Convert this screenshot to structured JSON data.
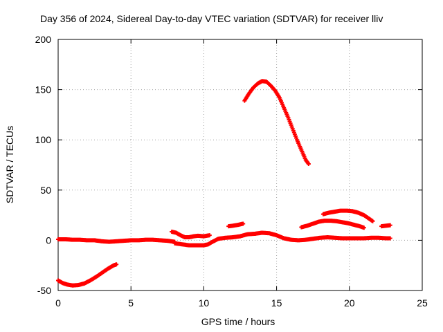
{
  "chart_data": {
    "type": "scatter",
    "title": "Day 356 of 2024, Sidereal Day-to-day VTEC variation (SDTVAR) for receiver lliv",
    "xlabel": "GPS time / hours",
    "ylabel": "SDTVAR / TECUs",
    "xlim": [
      0,
      25
    ],
    "ylim": [
      -50,
      200
    ],
    "xticks": [
      0,
      5,
      10,
      15,
      20,
      25
    ],
    "yticks": [
      -50,
      0,
      50,
      100,
      150,
      200
    ],
    "grid": true,
    "marker_color": "#ff0000",
    "series": [
      {
        "name": "seg-neg-dip",
        "points": [
          [
            0,
            -40
          ],
          [
            0.3,
            -42.5
          ],
          [
            0.6,
            -44
          ],
          [
            1.0,
            -45
          ],
          [
            1.4,
            -44.5
          ],
          [
            1.8,
            -43
          ],
          [
            2.2,
            -40
          ],
          [
            2.6,
            -36.5
          ],
          [
            3.0,
            -32.5
          ],
          [
            3.4,
            -28.5
          ],
          [
            3.8,
            -25
          ],
          [
            4.0,
            -24
          ]
        ]
      },
      {
        "name": "seg-baseline-a",
        "points": [
          [
            0,
            1
          ],
          [
            0.5,
            1
          ],
          [
            1.0,
            0.5
          ],
          [
            1.5,
            0.5
          ],
          [
            2.0,
            0
          ],
          [
            2.5,
            0
          ],
          [
            3.0,
            -1
          ],
          [
            3.5,
            -1.5
          ],
          [
            4.0,
            -1
          ],
          [
            4.5,
            -0.5
          ],
          [
            5.0,
            0
          ],
          [
            5.5,
            0
          ],
          [
            6.0,
            0.5
          ],
          [
            6.5,
            0.5
          ],
          [
            7.0,
            0
          ],
          [
            7.5,
            -0.5
          ],
          [
            8.0,
            -1.5
          ]
        ]
      },
      {
        "name": "seg-low-dip",
        "points": [
          [
            8.0,
            -3
          ],
          [
            8.5,
            -4
          ],
          [
            9.0,
            -5
          ],
          [
            9.5,
            -5
          ],
          [
            10.0,
            -5
          ],
          [
            10.3,
            -4
          ],
          [
            10.6,
            -1.5
          ],
          [
            11.0,
            1.5
          ],
          [
            11.5,
            2.5
          ],
          [
            12.0,
            3
          ],
          [
            12.5,
            4
          ],
          [
            13.0,
            6
          ],
          [
            13.5,
            6.5
          ],
          [
            14.0,
            7.5
          ],
          [
            14.5,
            7
          ],
          [
            15.0,
            5
          ],
          [
            15.5,
            2
          ],
          [
            16.0,
            0.5
          ],
          [
            16.5,
            0
          ],
          [
            17.0,
            0.5
          ],
          [
            17.5,
            1.5
          ],
          [
            18.0,
            2.5
          ],
          [
            18.5,
            3
          ],
          [
            19.0,
            2.5
          ],
          [
            19.5,
            2
          ],
          [
            20.0,
            2
          ],
          [
            20.5,
            2
          ],
          [
            21.0,
            2
          ],
          [
            21.5,
            2.5
          ],
          [
            22.0,
            2.5
          ],
          [
            22.5,
            2
          ],
          [
            22.8,
            2
          ]
        ]
      },
      {
        "name": "seg-bump-8",
        "points": [
          [
            7.8,
            8.5
          ],
          [
            8.1,
            7.5
          ],
          [
            8.4,
            5
          ],
          [
            8.7,
            3
          ],
          [
            9.0,
            3
          ],
          [
            9.3,
            4
          ],
          [
            9.6,
            4.5
          ],
          [
            10.0,
            4
          ],
          [
            10.4,
            5
          ]
        ]
      },
      {
        "name": "seg-bump-12",
        "points": [
          [
            11.7,
            14
          ],
          [
            12.0,
            14.5
          ],
          [
            12.4,
            15.5
          ],
          [
            12.7,
            16.5
          ]
        ]
      },
      {
        "name": "seg-peak-14",
        "points": [
          [
            12.8,
            139
          ],
          [
            13.1,
            146
          ],
          [
            13.4,
            152
          ],
          [
            13.7,
            156
          ],
          [
            14.0,
            158.5
          ],
          [
            14.3,
            158
          ],
          [
            14.6,
            154
          ],
          [
            14.9,
            149
          ],
          [
            15.2,
            142
          ],
          [
            15.5,
            132
          ],
          [
            15.8,
            122
          ],
          [
            16.1,
            111
          ],
          [
            16.4,
            100
          ],
          [
            16.7,
            90
          ],
          [
            17.0,
            80
          ],
          [
            17.2,
            76
          ]
        ]
      },
      {
        "name": "seg-arch-19",
        "points": [
          [
            16.7,
            13
          ],
          [
            17.1,
            14.5
          ],
          [
            17.5,
            16.5
          ],
          [
            17.9,
            18.5
          ],
          [
            18.3,
            19.5
          ],
          [
            18.7,
            19.5
          ],
          [
            19.1,
            19
          ],
          [
            19.5,
            18
          ],
          [
            19.9,
            17
          ],
          [
            20.3,
            15.5
          ],
          [
            20.7,
            14
          ],
          [
            21.0,
            12.5
          ]
        ]
      },
      {
        "name": "seg-arch-20",
        "points": [
          [
            18.2,
            26
          ],
          [
            18.6,
            27.5
          ],
          [
            19.0,
            28.5
          ],
          [
            19.4,
            29.5
          ],
          [
            19.8,
            29.5
          ],
          [
            20.2,
            29
          ],
          [
            20.6,
            27.5
          ],
          [
            21.0,
            25
          ],
          [
            21.3,
            22
          ],
          [
            21.6,
            19
          ]
        ]
      },
      {
        "name": "seg-tail-22",
        "points": [
          [
            22.2,
            14
          ],
          [
            22.5,
            14.5
          ],
          [
            22.8,
            15
          ]
        ]
      }
    ]
  }
}
